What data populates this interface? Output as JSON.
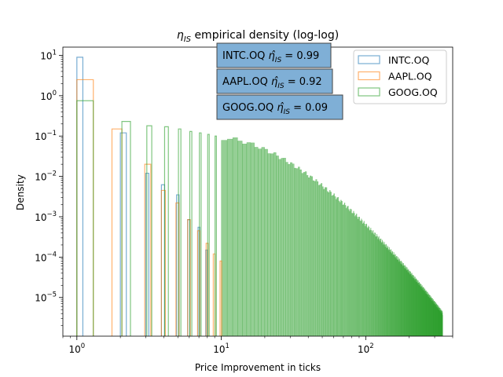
{
  "chart_data": {
    "type": "histogram",
    "title": "empirical density (log-log)",
    "title_symbol": "η",
    "title_subscript": "IS",
    "xlabel": "Price Improvement in ticks",
    "ylabel": "Density",
    "xscale": "log",
    "yscale": "log",
    "xlim": [
      0.8,
      400
    ],
    "ylim": [
      1.1e-06,
      16
    ],
    "x_ticks": [
      {
        "value": 1,
        "mantissa": "10",
        "exp": "0"
      },
      {
        "value": 10,
        "mantissa": "10",
        "exp": "1"
      },
      {
        "value": 100,
        "mantissa": "10",
        "exp": "2"
      }
    ],
    "y_ticks": [
      {
        "value": 10,
        "mantissa": "10",
        "exp": "1"
      },
      {
        "value": 1,
        "mantissa": "10",
        "exp": "0"
      },
      {
        "value": 0.1,
        "mantissa": "10",
        "exp": "−1"
      },
      {
        "value": 0.01,
        "mantissa": "10",
        "exp": "−2"
      },
      {
        "value": 0.001,
        "mantissa": "10",
        "exp": "−3"
      },
      {
        "value": 0.0001,
        "mantissa": "10",
        "exp": "−4"
      },
      {
        "value": 1e-05,
        "mantissa": "10",
        "exp": "−5"
      }
    ],
    "legend_position": "top-right",
    "series": [
      {
        "name": "INTC.OQ",
        "color": "#1f77b4",
        "filled": false,
        "bins": [
          {
            "x0": 1.0,
            "x1": 1.1,
            "v": 9.0
          },
          {
            "x0": 2.0,
            "x1": 2.2,
            "v": 0.12
          },
          {
            "x0": 3.0,
            "x1": 3.15,
            "v": 0.012
          },
          {
            "x0": 3.85,
            "x1": 4.05,
            "v": 0.0062
          },
          {
            "x0": 4.9,
            "x1": 5.1,
            "v": 0.0035
          },
          {
            "x0": 5.85,
            "x1": 6.05,
            "v": 0.00085
          },
          {
            "x0": 6.9,
            "x1": 7.1,
            "v": 0.00055
          },
          {
            "x0": 7.8,
            "x1": 8.0,
            "v": 0.00015
          }
        ]
      },
      {
        "name": "AAPL.OQ",
        "color": "#ff7f0e",
        "filled": false,
        "bins": [
          {
            "x0": 1.0,
            "x1": 1.3,
            "v": 2.5
          },
          {
            "x0": 1.75,
            "x1": 2.05,
            "v": 0.15
          },
          {
            "x0": 2.95,
            "x1": 3.25,
            "v": 0.02
          },
          {
            "x0": 3.85,
            "x1": 4.1,
            "v": 0.0045
          },
          {
            "x0": 4.85,
            "x1": 5.1,
            "v": 0.0022
          },
          {
            "x0": 5.85,
            "x1": 6.1,
            "v": 0.00085
          },
          {
            "x0": 6.85,
            "x1": 7.1,
            "v": 0.00045
          },
          {
            "x0": 7.85,
            "x1": 8.1,
            "v": 0.00022
          },
          {
            "x0": 8.8,
            "x1": 9.05,
            "v": 0.00012
          },
          {
            "x0": 9.8,
            "x1": 10.05,
            "v": 8e-05
          }
        ]
      },
      {
        "name": "GOOG.OQ",
        "color": "#2ca02c",
        "filled": false,
        "bins": [
          {
            "x0": 1.0,
            "x1": 1.3,
            "v": 0.75
          },
          {
            "x0": 2.05,
            "x1": 2.35,
            "v": 0.23
          },
          {
            "x0": 3.05,
            "x1": 3.3,
            "v": 0.18
          },
          {
            "x0": 4.05,
            "x1": 4.3,
            "v": 0.17
          },
          {
            "x0": 5.05,
            "x1": 5.25,
            "v": 0.15
          },
          {
            "x0": 6.05,
            "x1": 6.25,
            "v": 0.13
          },
          {
            "x0": 7.05,
            "x1": 7.25,
            "v": 0.12
          },
          {
            "x0": 8.05,
            "x1": 8.25,
            "v": 0.11
          },
          {
            "x0": 9.05,
            "x1": 9.25,
            "v": 0.1
          }
        ],
        "tail": {
          "name": "GOOG.OQ",
          "from": 10,
          "to": 340,
          "v_start": 0.088,
          "v_end": 4e-06,
          "curvature": 0.65,
          "color": "#2ca02c"
        }
      }
    ],
    "annotations": [
      {
        "label": "INTC.OQ",
        "symbol": "η̂",
        "sub": "IS",
        "value": "= 0.99"
      },
      {
        "label": "AAPL.OQ",
        "symbol": "η̂",
        "sub": "IS",
        "value": "= 0.92"
      },
      {
        "label": "GOOG.OQ",
        "symbol": "η̂",
        "sub": "IS",
        "value": " = 0.09"
      }
    ],
    "annotation_bg": "#7fafd6"
  }
}
